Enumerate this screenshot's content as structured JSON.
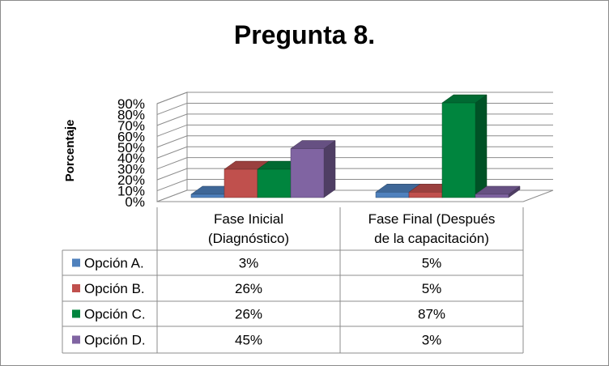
{
  "chart_data": {
    "type": "bar",
    "title": "Pregunta 8.",
    "ylabel": "Porcentaje",
    "xlabel": "",
    "ylim": [
      0,
      90
    ],
    "yticks": [
      "0%",
      "10%",
      "20%",
      "30%",
      "40%",
      "50%",
      "60%",
      "70%",
      "80%",
      "90%"
    ],
    "grid": true,
    "legend": "data-table",
    "categories": [
      [
        "Fase Inicial",
        "(Diagnóstico)"
      ],
      [
        "Fase Final (Después",
        "de la capacitación)"
      ]
    ],
    "series": [
      {
        "name": "Opción A.",
        "color": "#4f81bd",
        "values": [
          3,
          5
        ],
        "labels": [
          "3%",
          "5%"
        ]
      },
      {
        "name": "Opción B.",
        "color": "#c0504d",
        "values": [
          26,
          5
        ],
        "labels": [
          "26%",
          "5%"
        ]
      },
      {
        "name": "Opción C.",
        "color": "#00853e",
        "values": [
          26,
          87
        ],
        "labels": [
          "26%",
          "87%"
        ]
      },
      {
        "name": "Opción D.",
        "color": "#8064a2",
        "values": [
          45,
          3
        ],
        "labels": [
          "45%",
          "3%"
        ]
      }
    ]
  }
}
